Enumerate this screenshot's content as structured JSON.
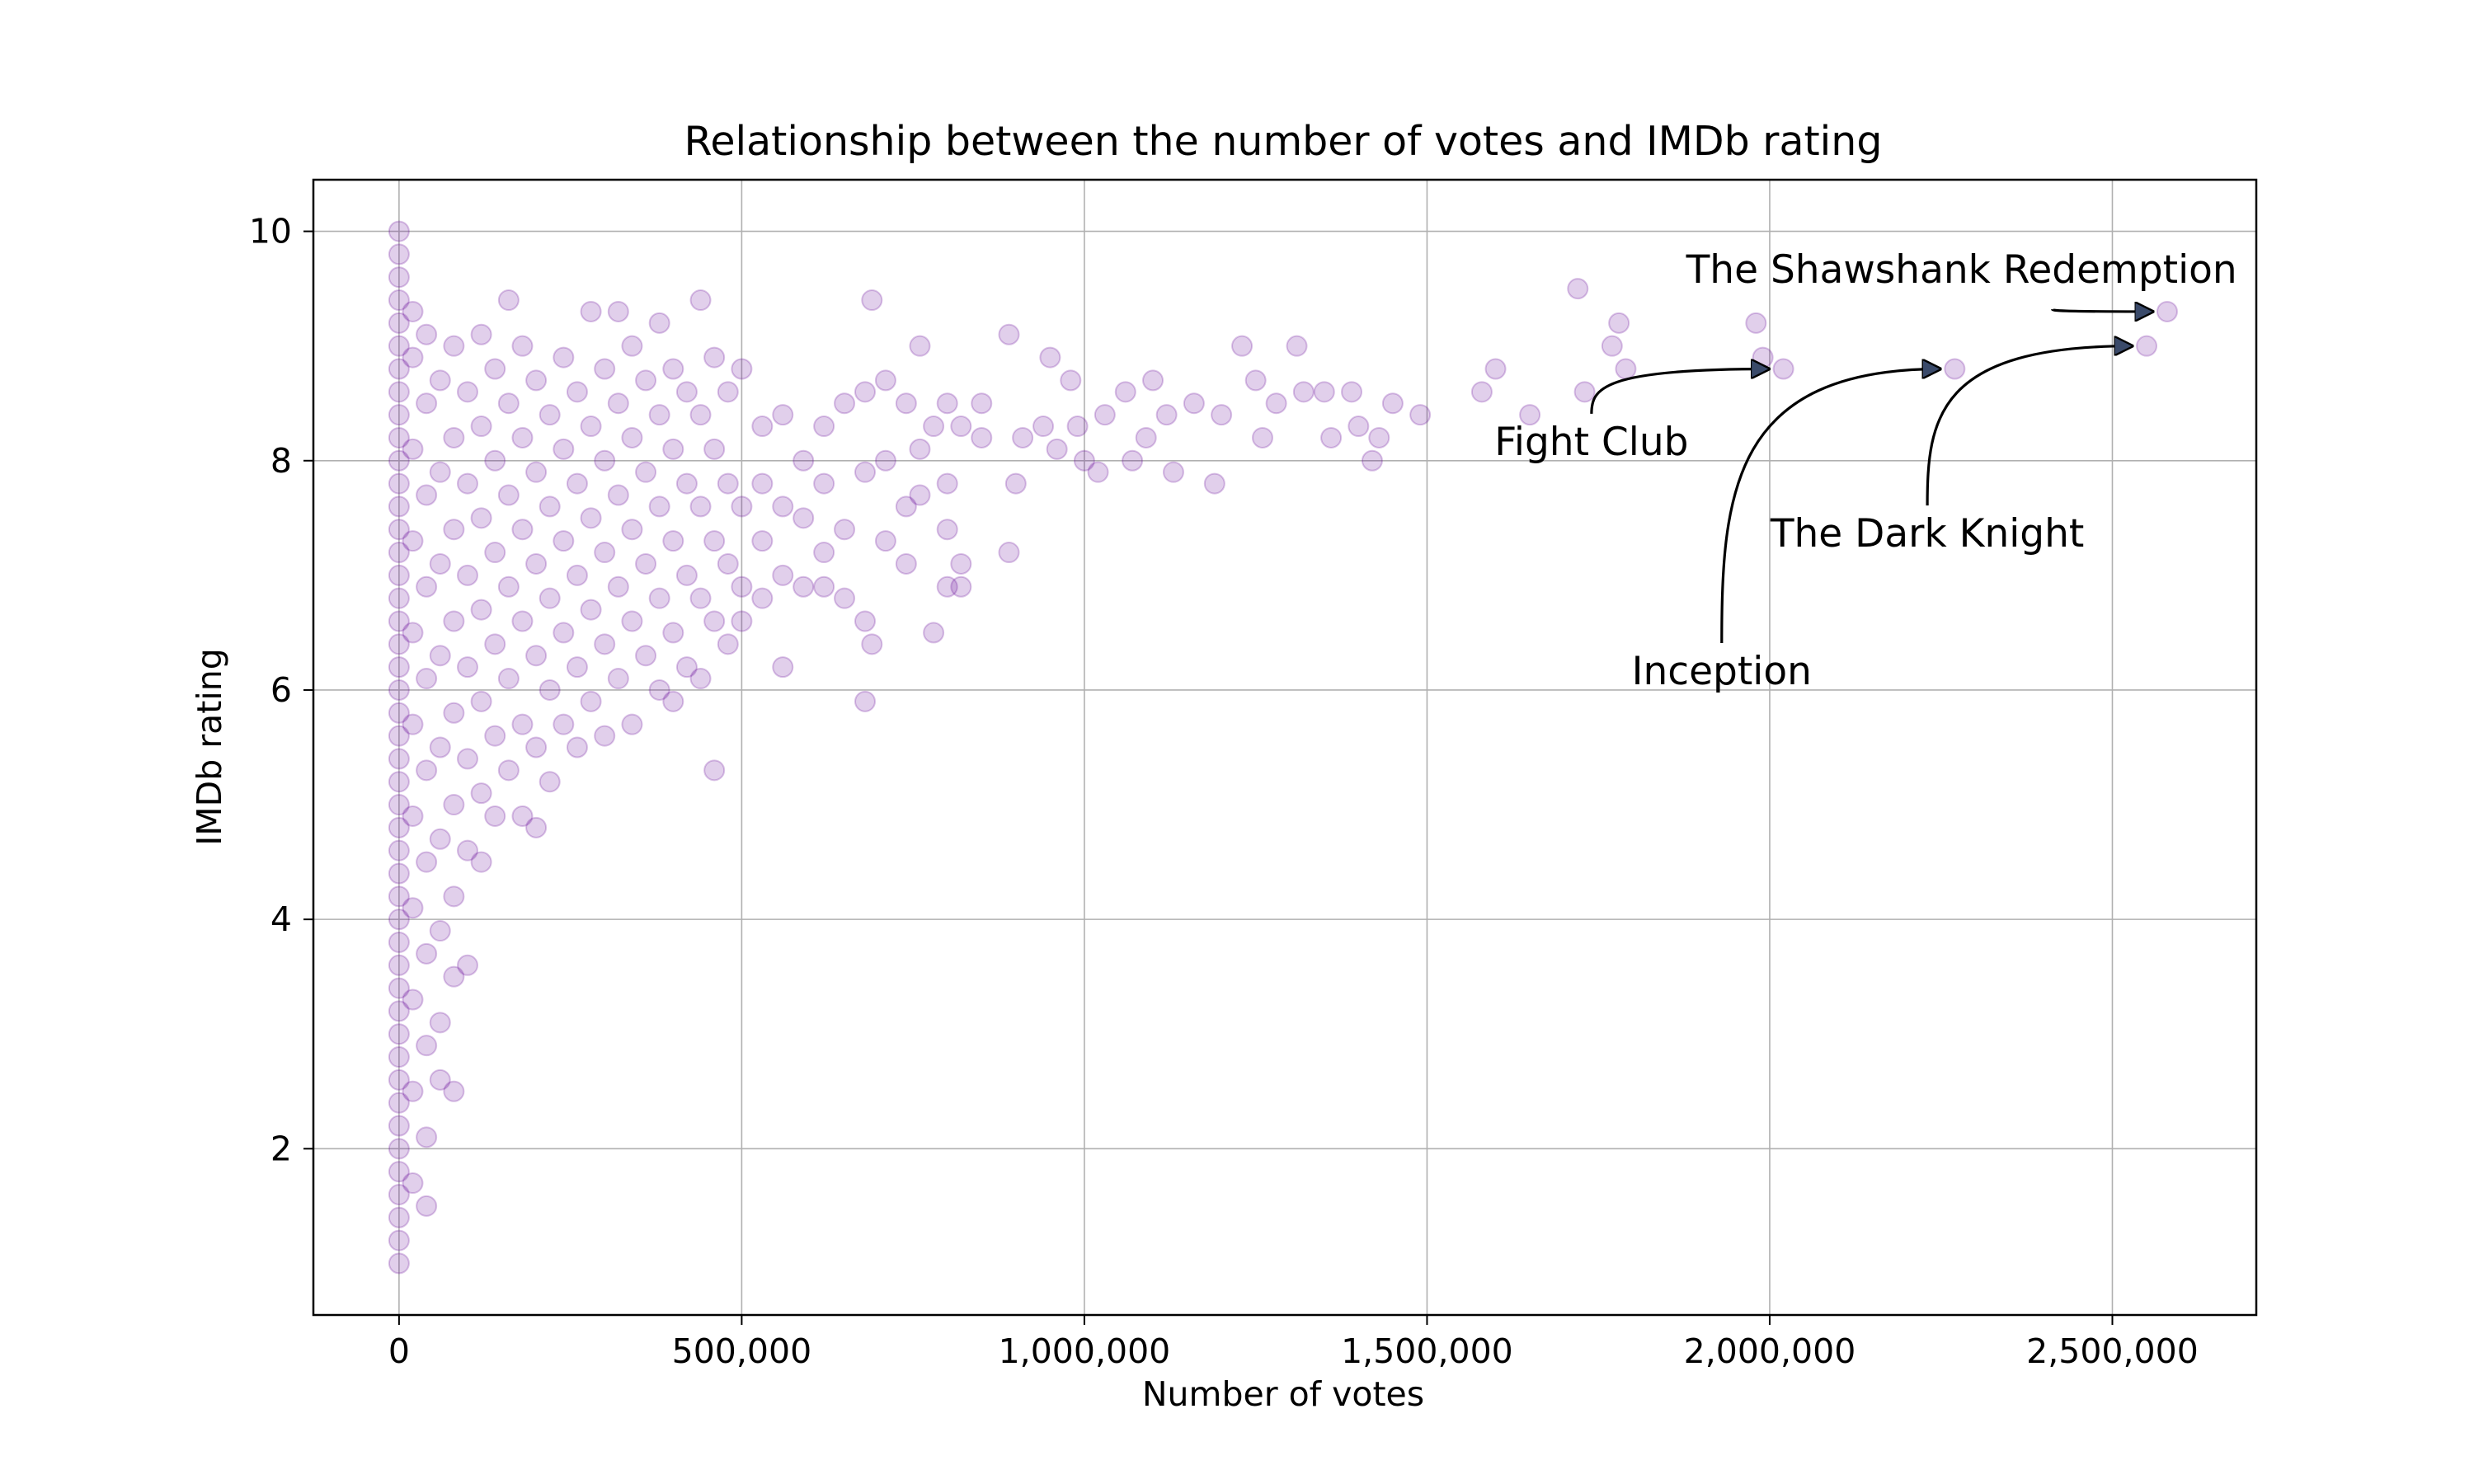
{
  "chart_data": {
    "type": "scatter",
    "title": "Relationship between the number of votes and IMDb rating",
    "xlabel": "Number of votes",
    "ylabel": "IMDb rating",
    "xlim": [
      -125000,
      2710000
    ],
    "ylim": [
      0.55,
      10.45
    ],
    "x_ticks": [
      0,
      500000,
      1000000,
      1500000,
      2000000,
      2500000
    ],
    "x_tick_labels": [
      "0",
      "500,000",
      "1,000,000",
      "1,500,000",
      "2,000,000",
      "2,500,000"
    ],
    "y_ticks": [
      2,
      4,
      6,
      8,
      10
    ],
    "y_tick_labels": [
      "2",
      "4",
      "6",
      "8",
      "10"
    ],
    "grid": true,
    "color": "#6a0f9a",
    "points": [
      [
        0,
        10.0
      ],
      [
        0,
        9.8
      ],
      [
        0,
        9.6
      ],
      [
        0,
        9.4
      ],
      [
        0,
        9.2
      ],
      [
        0,
        9.0
      ],
      [
        0,
        8.8
      ],
      [
        0,
        8.6
      ],
      [
        0,
        8.4
      ],
      [
        0,
        8.2
      ],
      [
        0,
        8.0
      ],
      [
        0,
        7.8
      ],
      [
        0,
        7.6
      ],
      [
        0,
        7.4
      ],
      [
        0,
        7.2
      ],
      [
        0,
        7.0
      ],
      [
        0,
        6.8
      ],
      [
        0,
        6.6
      ],
      [
        0,
        6.4
      ],
      [
        0,
        6.2
      ],
      [
        0,
        6.0
      ],
      [
        0,
        5.8
      ],
      [
        0,
        5.6
      ],
      [
        0,
        5.4
      ],
      [
        0,
        5.2
      ],
      [
        0,
        5.0
      ],
      [
        0,
        4.8
      ],
      [
        0,
        4.6
      ],
      [
        0,
        4.4
      ],
      [
        0,
        4.2
      ],
      [
        0,
        4.0
      ],
      [
        0,
        3.8
      ],
      [
        0,
        3.6
      ],
      [
        0,
        3.4
      ],
      [
        0,
        3.2
      ],
      [
        0,
        3.0
      ],
      [
        0,
        2.8
      ],
      [
        0,
        2.6
      ],
      [
        0,
        2.4
      ],
      [
        0,
        2.2
      ],
      [
        0,
        2.0
      ],
      [
        0,
        1.8
      ],
      [
        0,
        1.6
      ],
      [
        0,
        1.4
      ],
      [
        0,
        1.2
      ],
      [
        0,
        1.0
      ],
      [
        20000,
        9.3
      ],
      [
        20000,
        8.9
      ],
      [
        20000,
        8.1
      ],
      [
        20000,
        7.3
      ],
      [
        20000,
        6.5
      ],
      [
        20000,
        5.7
      ],
      [
        20000,
        4.9
      ],
      [
        20000,
        4.1
      ],
      [
        20000,
        3.3
      ],
      [
        20000,
        2.5
      ],
      [
        20000,
        1.7
      ],
      [
        40000,
        9.1
      ],
      [
        40000,
        8.5
      ],
      [
        40000,
        7.7
      ],
      [
        40000,
        6.9
      ],
      [
        40000,
        6.1
      ],
      [
        40000,
        5.3
      ],
      [
        40000,
        4.5
      ],
      [
        40000,
        3.7
      ],
      [
        40000,
        2.9
      ],
      [
        40000,
        2.1
      ],
      [
        40000,
        1.5
      ],
      [
        60000,
        8.7
      ],
      [
        60000,
        7.9
      ],
      [
        60000,
        7.1
      ],
      [
        60000,
        6.3
      ],
      [
        60000,
        5.5
      ],
      [
        60000,
        4.7
      ],
      [
        60000,
        3.9
      ],
      [
        60000,
        3.1
      ],
      [
        60000,
        2.6
      ],
      [
        80000,
        9.0
      ],
      [
        80000,
        8.2
      ],
      [
        80000,
        7.4
      ],
      [
        80000,
        6.6
      ],
      [
        80000,
        5.8
      ],
      [
        80000,
        5.0
      ],
      [
        80000,
        4.2
      ],
      [
        80000,
        3.5
      ],
      [
        80000,
        2.5
      ],
      [
        100000,
        8.6
      ],
      [
        100000,
        7.8
      ],
      [
        100000,
        7.0
      ],
      [
        100000,
        6.2
      ],
      [
        100000,
        5.4
      ],
      [
        100000,
        4.6
      ],
      [
        100000,
        3.6
      ],
      [
        120000,
        9.1
      ],
      [
        120000,
        8.3
      ],
      [
        120000,
        7.5
      ],
      [
        120000,
        6.7
      ],
      [
        120000,
        5.9
      ],
      [
        120000,
        5.1
      ],
      [
        120000,
        4.5
      ],
      [
        140000,
        8.8
      ],
      [
        140000,
        8.0
      ],
      [
        140000,
        7.2
      ],
      [
        140000,
        6.4
      ],
      [
        140000,
        5.6
      ],
      [
        140000,
        4.9
      ],
      [
        160000,
        9.4
      ],
      [
        160000,
        8.5
      ],
      [
        160000,
        7.7
      ],
      [
        160000,
        6.9
      ],
      [
        160000,
        6.1
      ],
      [
        160000,
        5.3
      ],
      [
        180000,
        9.0
      ],
      [
        180000,
        8.2
      ],
      [
        180000,
        7.4
      ],
      [
        180000,
        6.6
      ],
      [
        180000,
        5.7
      ],
      [
        180000,
        4.9
      ],
      [
        200000,
        8.7
      ],
      [
        200000,
        7.9
      ],
      [
        200000,
        7.1
      ],
      [
        200000,
        6.3
      ],
      [
        200000,
        5.5
      ],
      [
        200000,
        4.8
      ],
      [
        220000,
        8.4
      ],
      [
        220000,
        7.6
      ],
      [
        220000,
        6.8
      ],
      [
        220000,
        6.0
      ],
      [
        220000,
        5.2
      ],
      [
        240000,
        8.9
      ],
      [
        240000,
        8.1
      ],
      [
        240000,
        7.3
      ],
      [
        240000,
        6.5
      ],
      [
        240000,
        5.7
      ],
      [
        260000,
        8.6
      ],
      [
        260000,
        7.8
      ],
      [
        260000,
        7.0
      ],
      [
        260000,
        6.2
      ],
      [
        260000,
        5.5
      ],
      [
        280000,
        9.3
      ],
      [
        280000,
        8.3
      ],
      [
        280000,
        7.5
      ],
      [
        280000,
        6.7
      ],
      [
        280000,
        5.9
      ],
      [
        300000,
        8.8
      ],
      [
        300000,
        8.0
      ],
      [
        300000,
        7.2
      ],
      [
        300000,
        6.4
      ],
      [
        300000,
        5.6
      ],
      [
        320000,
        9.3
      ],
      [
        320000,
        8.5
      ],
      [
        320000,
        7.7
      ],
      [
        320000,
        6.9
      ],
      [
        320000,
        6.1
      ],
      [
        340000,
        9.0
      ],
      [
        340000,
        8.2
      ],
      [
        340000,
        7.4
      ],
      [
        340000,
        6.6
      ],
      [
        340000,
        5.7
      ],
      [
        360000,
        8.7
      ],
      [
        360000,
        7.9
      ],
      [
        360000,
        7.1
      ],
      [
        360000,
        6.3
      ],
      [
        380000,
        9.2
      ],
      [
        380000,
        8.4
      ],
      [
        380000,
        7.6
      ],
      [
        380000,
        6.8
      ],
      [
        380000,
        6.0
      ],
      [
        400000,
        8.8
      ],
      [
        400000,
        8.1
      ],
      [
        400000,
        7.3
      ],
      [
        400000,
        6.5
      ],
      [
        400000,
        5.9
      ],
      [
        420000,
        8.6
      ],
      [
        420000,
        7.8
      ],
      [
        420000,
        7.0
      ],
      [
        420000,
        6.2
      ],
      [
        440000,
        9.4
      ],
      [
        440000,
        8.4
      ],
      [
        440000,
        7.6
      ],
      [
        440000,
        6.8
      ],
      [
        440000,
        6.1
      ],
      [
        460000,
        8.9
      ],
      [
        460000,
        8.1
      ],
      [
        460000,
        7.3
      ],
      [
        460000,
        6.6
      ],
      [
        460000,
        5.3
      ],
      [
        480000,
        8.6
      ],
      [
        480000,
        7.8
      ],
      [
        480000,
        7.1
      ],
      [
        480000,
        6.4
      ],
      [
        500000,
        8.8
      ],
      [
        500000,
        7.6
      ],
      [
        500000,
        6.9
      ],
      [
        500000,
        6.6
      ],
      [
        530000,
        8.3
      ],
      [
        530000,
        7.8
      ],
      [
        530000,
        7.3
      ],
      [
        530000,
        6.8
      ],
      [
        560000,
        8.4
      ],
      [
        560000,
        7.6
      ],
      [
        560000,
        7.0
      ],
      [
        560000,
        6.2
      ],
      [
        590000,
        8.0
      ],
      [
        590000,
        7.5
      ],
      [
        590000,
        6.9
      ],
      [
        620000,
        8.3
      ],
      [
        620000,
        7.8
      ],
      [
        620000,
        7.2
      ],
      [
        620000,
        6.9
      ],
      [
        650000,
        8.5
      ],
      [
        650000,
        7.4
      ],
      [
        650000,
        6.8
      ],
      [
        680000,
        8.6
      ],
      [
        680000,
        7.9
      ],
      [
        680000,
        6.6
      ],
      [
        680000,
        5.9
      ],
      [
        690000,
        9.4
      ],
      [
        690000,
        6.4
      ],
      [
        710000,
        8.7
      ],
      [
        710000,
        8.0
      ],
      [
        710000,
        7.3
      ],
      [
        740000,
        8.5
      ],
      [
        740000,
        7.6
      ],
      [
        740000,
        7.1
      ],
      [
        760000,
        9.0
      ],
      [
        760000,
        8.1
      ],
      [
        760000,
        7.7
      ],
      [
        780000,
        8.3
      ],
      [
        780000,
        6.5
      ],
      [
        800000,
        8.5
      ],
      [
        800000,
        7.8
      ],
      [
        800000,
        7.4
      ],
      [
        800000,
        6.9
      ],
      [
        820000,
        8.3
      ],
      [
        820000,
        7.1
      ],
      [
        820000,
        6.9
      ],
      [
        850000,
        8.5
      ],
      [
        850000,
        8.2
      ],
      [
        890000,
        9.1
      ],
      [
        890000,
        7.2
      ],
      [
        900000,
        7.8
      ],
      [
        910000,
        8.2
      ],
      [
        940000,
        8.3
      ],
      [
        950000,
        8.9
      ],
      [
        960000,
        8.1
      ],
      [
        980000,
        8.7
      ],
      [
        990000,
        8.3
      ],
      [
        1000000,
        8.0
      ],
      [
        1020000,
        7.9
      ],
      [
        1030000,
        8.4
      ],
      [
        1060000,
        8.6
      ],
      [
        1070000,
        8.0
      ],
      [
        1090000,
        8.2
      ],
      [
        1100000,
        8.7
      ],
      [
        1120000,
        8.4
      ],
      [
        1130000,
        7.9
      ],
      [
        1160000,
        8.5
      ],
      [
        1190000,
        7.8
      ],
      [
        1200000,
        8.4
      ],
      [
        1230000,
        9.0
      ],
      [
        1250000,
        8.7
      ],
      [
        1260000,
        8.2
      ],
      [
        1280000,
        8.5
      ],
      [
        1310000,
        9.0
      ],
      [
        1320000,
        8.6
      ],
      [
        1350000,
        8.6
      ],
      [
        1360000,
        8.2
      ],
      [
        1390000,
        8.6
      ],
      [
        1400000,
        8.3
      ],
      [
        1420000,
        8.0
      ],
      [
        1430000,
        8.2
      ],
      [
        1450000,
        8.5
      ],
      [
        1490000,
        8.4
      ],
      [
        1580000,
        8.6
      ],
      [
        1600000,
        8.8
      ],
      [
        1650000,
        8.4
      ],
      [
        1720000,
        9.5
      ],
      [
        1730000,
        8.6
      ],
      [
        1770000,
        9.0
      ],
      [
        1780000,
        9.2
      ],
      [
        1790000,
        8.8
      ],
      [
        1980000,
        9.2
      ],
      [
        1990000,
        8.9
      ],
      [
        2020000,
        8.8
      ],
      [
        2270000,
        8.8
      ],
      [
        2550000,
        9.0
      ],
      [
        2580000,
        9.3
      ]
    ],
    "annotations": [
      {
        "text": "The Shawshank Redemption",
        "x": 2580000,
        "y": 9.3,
        "text_x": 2280000,
        "text_y": 9.55
      },
      {
        "text": "Fight Club",
        "x": 2020000,
        "y": 8.8,
        "text_x": 1740000,
        "text_y": 8.05
      },
      {
        "text": "The Dark Knight",
        "x": 2550000,
        "y": 9.0,
        "text_x": 2230000,
        "text_y": 7.25
      },
      {
        "text": "Inception",
        "x": 2270000,
        "y": 8.8,
        "text_x": 1930000,
        "text_y": 6.05
      }
    ]
  }
}
